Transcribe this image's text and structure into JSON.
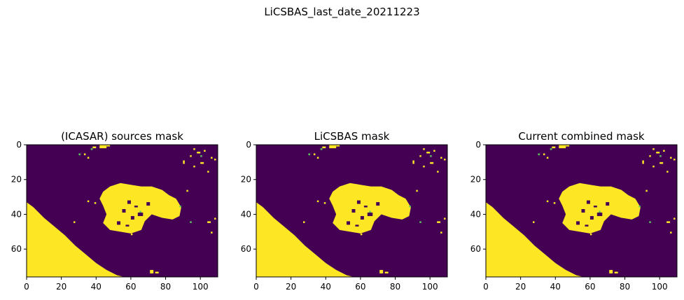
{
  "figure": {
    "suptitle": "LiCSBAS_last_date_20211223"
  },
  "colors": {
    "masked_out": "#440154",
    "kept": "#fde725",
    "edge": "#5ec962"
  },
  "chart_data": [
    {
      "type": "heatmap",
      "title": "(ICASAR) sources mask",
      "colormap": "viridis (binary)",
      "xlim": [
        0,
        110
      ],
      "ylim": [
        76,
        0
      ],
      "xticks": [
        "0",
        "20",
        "40",
        "60",
        "80",
        "100"
      ],
      "yticks": [
        "0",
        "20",
        "40",
        "60"
      ],
      "xtick_values": [
        0,
        20,
        40,
        60,
        80,
        100
      ],
      "ytick_values": [
        0,
        20,
        40,
        60
      ]
    },
    {
      "type": "heatmap",
      "title": "LiCSBAS mask",
      "colormap": "viridis (binary)",
      "xlim": [
        0,
        110
      ],
      "ylim": [
        76,
        0
      ],
      "xticks": [
        "0",
        "20",
        "40",
        "60",
        "80",
        "100"
      ],
      "yticks": [
        "0",
        "20",
        "40",
        "60"
      ],
      "xtick_values": [
        0,
        20,
        40,
        60,
        80,
        100
      ],
      "ytick_values": [
        0,
        20,
        40,
        60
      ]
    },
    {
      "type": "heatmap",
      "title": "Current combined mask",
      "colormap": "viridis (binary)",
      "xlim": [
        0,
        110
      ],
      "ylim": [
        76,
        0
      ],
      "xticks": [
        "0",
        "20",
        "40",
        "60",
        "80",
        "100"
      ],
      "yticks": [
        "0",
        "20",
        "40",
        "60"
      ],
      "xtick_values": [
        0,
        20,
        40,
        60,
        80,
        100
      ],
      "ytick_values": [
        0,
        20,
        40,
        60
      ]
    }
  ]
}
